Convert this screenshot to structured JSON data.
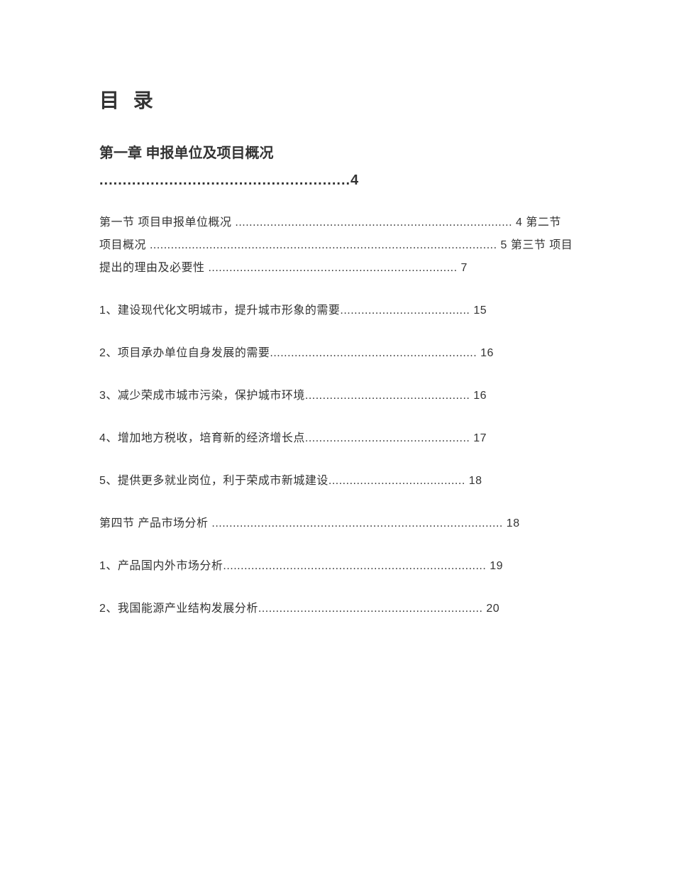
{
  "title": "目 录",
  "chapter": {
    "heading": "第一章 申报单位及项目概况",
    "dots_line": "......................................................4"
  },
  "entries": {
    "e1": "第一节 项目申报单位概况 ............................................................................... 4 第二节 项目概况 ................................................................................................... 5 第三节 项目提出的理由及必要性 ....................................................................... 7",
    "e2": "1、建设现代化文明城市，提升城市形象的需要..................................... 15",
    "e3": "2、项目承办单位自身发展的需要........................................................... 16",
    "e4": "3、减少荣成市城市污染，保护城市环境............................................... 16",
    "e5": "4、增加地方税收，培育新的经济增长点............................................... 17",
    "e6": "5、提供更多就业岗位，利于荣成市新城建设....................................... 18",
    "e7": "第四节 产品市场分析 ................................................................................... 18",
    "e8": "1、产品国内外市场分析........................................................................... 19",
    "e9": "2、我国能源产业结构发展分析................................................................ 20"
  }
}
